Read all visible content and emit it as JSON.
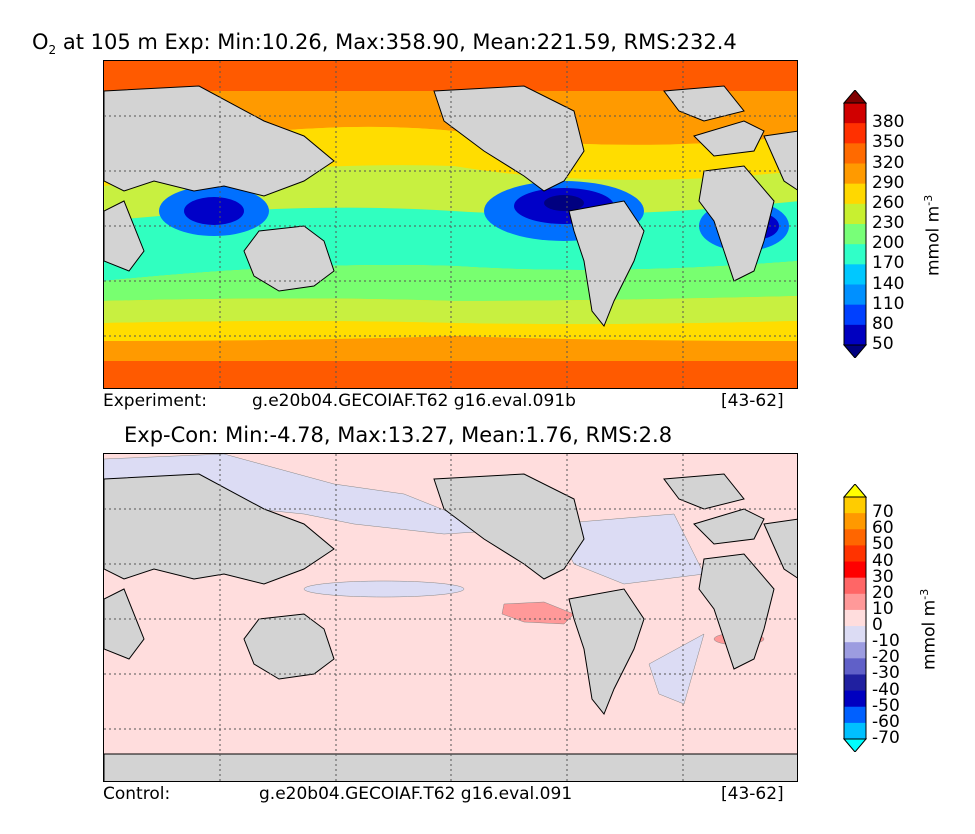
{
  "top_panel": {
    "title_o2": "O",
    "title_sub": "2",
    "title_rest": "at 105 m Exp: Min:10.26, Max:358.90, Mean:221.59, RMS:232.4",
    "caption_label": "Experiment:",
    "caption_case": "g.e20b04.GECOIAF.T62 g16.eval.091b",
    "caption_years": "[43-62]",
    "colorbar": {
      "unit": "mmol m",
      "unit_sup": "-3",
      "ticks": [
        "380",
        "350",
        "320",
        "290",
        "260",
        "230",
        "200",
        "170",
        "140",
        "110",
        "80",
        "50"
      ],
      "colors": [
        "#800000",
        "#d00000",
        "#ff3000",
        "#ff6a00",
        "#ff9a00",
        "#ffd800",
        "#c8f030",
        "#78ff78",
        "#30ffc8",
        "#00c8ff",
        "#0090ff",
        "#0040ff",
        "#0000c0",
        "#000080"
      ]
    }
  },
  "bottom_panel": {
    "title": "Exp-Con: Min:-4.78, Max:13.27, Mean:1.76, RMS:2.8",
    "caption_label": "Control:",
    "caption_case": "g.e20b04.GECOIAF.T62 g16.eval.091",
    "caption_years": "[43-62]",
    "colorbar": {
      "unit": "mmol m",
      "unit_sup": "-3",
      "ticks": [
        "70",
        "60",
        "50",
        "40",
        "30",
        "20",
        "10",
        "0",
        "-10",
        "-20",
        "-30",
        "-40",
        "-50",
        "-60",
        "-70"
      ],
      "colors": [
        "#ffff00",
        "#ffcc00",
        "#ff9900",
        "#ff6600",
        "#ff3300",
        "#ff0000",
        "#ff6666",
        "#ff9999",
        "#ffdddd",
        "#dcdcf4",
        "#9c9ce0",
        "#6060c8",
        "#2020a0",
        "#0000c0",
        "#0060ff",
        "#00c0ff",
        "#00ffff"
      ]
    }
  },
  "map_colors": {
    "land": "#d3d3d3",
    "o2_bands": [
      "#ff5a00",
      "#ff9a00",
      "#ffdd00",
      "#c8f040",
      "#78ff70",
      "#30ffc0",
      "#00c8ff",
      "#0070ff",
      "#0000c8",
      "#000080"
    ],
    "diff_pos_small": "#ffdddd",
    "diff_neg_small": "#dcdcf4",
    "diff_pos_mid": "#ff9999"
  }
}
